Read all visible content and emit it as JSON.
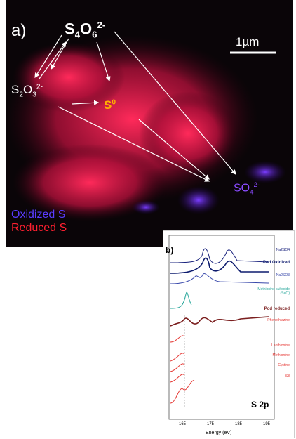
{
  "panel_a": {
    "label": "a)",
    "scale_bar": "1µm",
    "s4o6": [
      "S",
      "4",
      "O",
      "6",
      "2-"
    ],
    "s2o3": [
      "S",
      "2",
      "O",
      "3",
      "2-"
    ],
    "s0": [
      "S",
      "0"
    ],
    "so4": [
      "SO",
      "4",
      "2-"
    ],
    "legend": [
      "Oxidized S",
      "Reduced S"
    ]
  },
  "panel_b": {
    "label": "b)",
    "title": "S 2p",
    "x_label": "Energy (eV)",
    "xticks": [
      "165",
      "175",
      "185",
      "195"
    ],
    "curves": [
      {
        "label": "Na2SO4",
        "color": "#1a237e"
      },
      {
        "label": "Pod Oxidized",
        "color": "#0d1b6e"
      },
      {
        "label": "Na2SO3",
        "color": "#3949ab"
      },
      {
        "label": "Methionine sulfoxide (S=O)",
        "color": "#26a69a"
      },
      {
        "label": "Pod reduced",
        "color": "#7b1f1f"
      },
      {
        "label": "Phenothiazine",
        "color": "#e53935"
      },
      {
        "label": "Lanthionine",
        "color": "#e53935"
      },
      {
        "label": "Methionine",
        "color": "#e53935"
      },
      {
        "label": "Cystine",
        "color": "#e53935"
      },
      {
        "label": "S8",
        "color": "#e53935"
      }
    ]
  }
}
